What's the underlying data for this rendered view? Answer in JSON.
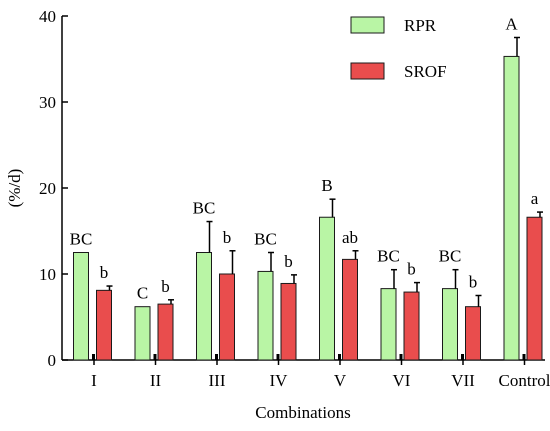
{
  "chart_data": {
    "type": "bar",
    "title": "",
    "xlabel": "Combinations",
    "ylabel": "(%/d)",
    "ylim": [
      0,
      40
    ],
    "yticks": [
      0,
      10,
      20,
      30,
      40
    ],
    "grid": false,
    "legend_position": "top-right",
    "categories": [
      "I",
      "II",
      "III",
      "IV",
      "V",
      "VI",
      "VII",
      "Control"
    ],
    "series": [
      {
        "name": "RPR",
        "color": "#b9f5a5",
        "values": [
          12.5,
          6.2,
          12.5,
          10.3,
          16.6,
          8.3,
          8.3,
          35.3
        ],
        "errors": [
          0,
          0,
          3.6,
          2.2,
          2.1,
          2.2,
          2.2,
          2.2
        ],
        "labels": [
          "BC",
          "C",
          "BC",
          "BC",
          "B",
          "BC",
          "BC",
          "A"
        ]
      },
      {
        "name": "SROF",
        "color": "#e94d4d",
        "values": [
          8.1,
          6.5,
          10.0,
          8.9,
          11.7,
          7.9,
          6.2,
          16.6
        ],
        "errors": [
          0.5,
          0.5,
          2.7,
          1.0,
          1.0,
          1.1,
          1.3,
          0.6
        ],
        "labels": [
          "b",
          "b",
          "b",
          "b",
          "ab",
          "b",
          "b",
          "a"
        ]
      }
    ]
  }
}
